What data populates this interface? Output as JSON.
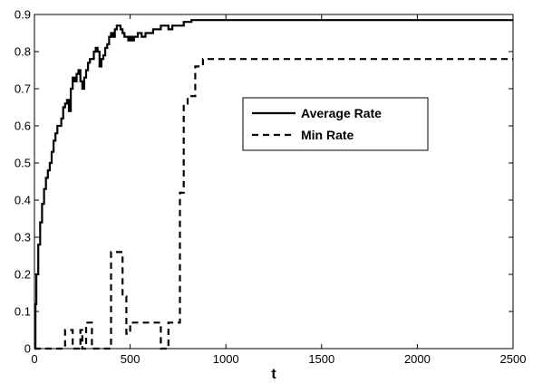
{
  "chart_data": {
    "type": "line",
    "title": "",
    "xlabel": "t",
    "ylabel": "",
    "xlim": [
      0,
      2500
    ],
    "ylim": [
      0,
      0.9
    ],
    "xticks": [
      0,
      500,
      1000,
      1500,
      2000,
      2500
    ],
    "yticks": [
      0,
      0.1,
      0.2,
      0.3,
      0.4,
      0.5,
      0.6,
      0.7,
      0.8,
      0.9
    ],
    "grid": false,
    "legend_position": "center-right",
    "series": [
      {
        "name": "Average Rate",
        "style": "solid",
        "color": "#000000",
        "step": true,
        "x": [
          0,
          5,
          10,
          20,
          30,
          40,
          50,
          60,
          70,
          80,
          90,
          100,
          110,
          120,
          130,
          140,
          150,
          160,
          170,
          180,
          190,
          200,
          210,
          220,
          230,
          240,
          250,
          260,
          270,
          280,
          290,
          300,
          310,
          320,
          330,
          340,
          350,
          360,
          370,
          380,
          390,
          400,
          410,
          420,
          430,
          440,
          450,
          460,
          470,
          480,
          490,
          500,
          510,
          520,
          530,
          540,
          550,
          560,
          580,
          600,
          620,
          640,
          660,
          680,
          700,
          720,
          740,
          760,
          780,
          800,
          820,
          840,
          860,
          880,
          900,
          920,
          2500
        ],
        "values": [
          0.0,
          0.12,
          0.2,
          0.28,
          0.34,
          0.39,
          0.43,
          0.46,
          0.48,
          0.5,
          0.53,
          0.56,
          0.58,
          0.6,
          0.6,
          0.62,
          0.65,
          0.66,
          0.67,
          0.64,
          0.7,
          0.73,
          0.72,
          0.74,
          0.75,
          0.72,
          0.7,
          0.73,
          0.75,
          0.77,
          0.78,
          0.78,
          0.8,
          0.81,
          0.8,
          0.76,
          0.78,
          0.79,
          0.81,
          0.82,
          0.84,
          0.85,
          0.84,
          0.86,
          0.87,
          0.87,
          0.86,
          0.85,
          0.84,
          0.84,
          0.83,
          0.84,
          0.83,
          0.84,
          0.84,
          0.85,
          0.85,
          0.84,
          0.85,
          0.85,
          0.86,
          0.86,
          0.87,
          0.87,
          0.86,
          0.87,
          0.87,
          0.87,
          0.88,
          0.88,
          0.885,
          0.885,
          0.885,
          0.885,
          0.885,
          0.885,
          0.885
        ]
      },
      {
        "name": "Min Rate",
        "style": "dashed",
        "color": "#000000",
        "step": true,
        "x": [
          0,
          140,
          160,
          180,
          200,
          220,
          240,
          250,
          270,
          300,
          320,
          340,
          370,
          400,
          420,
          440,
          460,
          480,
          500,
          520,
          560,
          640,
          660,
          680,
          700,
          720,
          740,
          760,
          780,
          800,
          840,
          880,
          920,
          2500
        ],
        "values": [
          0,
          0,
          0.05,
          0.05,
          0,
          0,
          0.05,
          0,
          0.07,
          0,
          0,
          0,
          0,
          0.26,
          0.26,
          0.26,
          0.14,
          0.04,
          0.07,
          0.07,
          0.07,
          0.07,
          0,
          0,
          0.07,
          0.07,
          0.07,
          0.42,
          0.66,
          0.68,
          0.76,
          0.78,
          0.78,
          0.78
        ]
      }
    ]
  }
}
